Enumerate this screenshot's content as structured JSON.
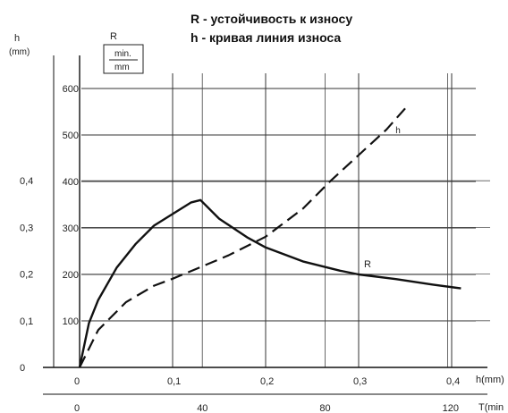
{
  "header": {
    "title_line1": "R - устойчивость к износу",
    "title_line2": "h - кривая линия износа"
  },
  "chart_data": {
    "type": "line",
    "left_axis": {
      "label": "h",
      "unit": "(mm)",
      "ticks": [
        "0",
        "0,1",
        "0,2",
        "0,3",
        "0,4"
      ],
      "tick_values": [
        0,
        0.1,
        0.2,
        0.3,
        0.4
      ],
      "range": [
        0,
        0.55
      ]
    },
    "r_axis": {
      "label": "R",
      "unit_num": "min.",
      "unit_den": "mm",
      "ticks": [
        "100",
        "200",
        "300",
        "400",
        "500",
        "600"
      ],
      "tick_values": [
        100,
        200,
        300,
        400,
        500,
        600
      ],
      "range": [
        0,
        680
      ]
    },
    "x_axis_h": {
      "label": "h(mm)",
      "ticks": [
        "0",
        "0,1",
        "0,2",
        "0,3",
        "0,4"
      ],
      "tick_values": [
        0,
        0.1,
        0.2,
        0.3,
        0.4
      ],
      "range": [
        0,
        0.46
      ]
    },
    "x_axis_t": {
      "label": "T(min",
      "ticks": [
        "0",
        "40",
        "80",
        "120"
      ],
      "tick_values": [
        0,
        40,
        80,
        120
      ]
    },
    "grid": true,
    "series": [
      {
        "name": "R",
        "style": "solid",
        "axis": "R",
        "x": [
          0,
          0.01,
          0.02,
          0.04,
          0.06,
          0.08,
          0.1,
          0.12,
          0.13,
          0.15,
          0.18,
          0.2,
          0.24,
          0.28,
          0.3,
          0.34,
          0.38,
          0.41
        ],
        "y": [
          0,
          95,
          145,
          215,
          265,
          305,
          330,
          355,
          360,
          320,
          280,
          258,
          228,
          208,
          200,
          190,
          178,
          170
        ]
      },
      {
        "name": "h",
        "style": "dashed",
        "axis": "h",
        "x": [
          0,
          0.02,
          0.05,
          0.08,
          0.1,
          0.13,
          0.16,
          0.2,
          0.24,
          0.27,
          0.3,
          0.33,
          0.35
        ],
        "y": [
          0,
          0.08,
          0.14,
          0.175,
          0.19,
          0.215,
          0.24,
          0.28,
          0.34,
          0.4,
          0.455,
          0.51,
          0.555
        ]
      }
    ]
  }
}
